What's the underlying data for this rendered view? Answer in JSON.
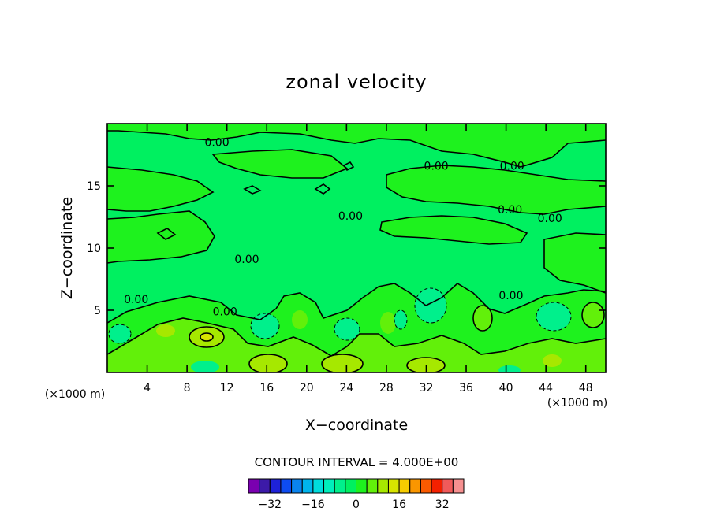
{
  "chart_data": {
    "type": "contour",
    "title": "zonal velocity",
    "xlabel": "X−coordinate",
    "ylabel": "Z−coordinate",
    "x_unit_label": "(×1000 m)",
    "y_unit_label": "(×1000 m)",
    "xlim": [
      0,
      50
    ],
    "ylim": [
      0,
      20
    ],
    "x_ticks": [
      4,
      8,
      12,
      16,
      20,
      24,
      28,
      32,
      36,
      40,
      44,
      48
    ],
    "y_ticks": [
      5,
      10,
      15
    ],
    "contour_interval_text": "CONTOUR INTERVAL = 4.000E+00",
    "contour_interval": 4,
    "contour_labels": [
      {
        "text": "0.00",
        "x": 11,
        "y": 18.5
      },
      {
        "text": "0.00",
        "x": 33,
        "y": 16.6
      },
      {
        "text": "0.00",
        "x": 40.6,
        "y": 16.6
      },
      {
        "text": "0.00",
        "x": 24.4,
        "y": 12.6
      },
      {
        "text": "0.00",
        "x": 40.4,
        "y": 13.1
      },
      {
        "text": "0.00",
        "x": 44.4,
        "y": 12.4
      },
      {
        "text": "0.00",
        "x": 14,
        "y": 9.1
      },
      {
        "text": "0.00",
        "x": 2.9,
        "y": 5.9
      },
      {
        "text": "0.00",
        "x": 11.8,
        "y": 4.9
      },
      {
        "text": "0.00",
        "x": 40.5,
        "y": 6.2
      }
    ],
    "colorbar": {
      "levels": [
        -40,
        -36,
        -32,
        -28,
        -24,
        -20,
        -16,
        -12,
        -8,
        -4,
        0,
        4,
        8,
        12,
        16,
        20,
        24,
        28,
        32,
        36,
        40
      ],
      "colors": [
        "#7a00b0",
        "#3c1aa8",
        "#1e22d8",
        "#0e4cf0",
        "#0a84ee",
        "#00b4ec",
        "#00dcdc",
        "#00eebc",
        "#00f08c",
        "#00f060",
        "#1ef21e",
        "#62f00a",
        "#a6e800",
        "#d8e400",
        "#f6cc00",
        "#fa9600",
        "#fa5a00",
        "#f42000",
        "#f05a5a",
        "#f69090"
      ],
      "tick_labels": [
        "−32",
        "−16",
        "0",
        "16",
        "32"
      ],
      "tick_values": [
        -32,
        -16,
        0,
        16,
        32
      ]
    },
    "field_regions": [
      {
        "level": "-4 to 0",
        "color": "#00f060"
      },
      {
        "level": "0 to 4",
        "color": "#1ef21e"
      },
      {
        "level": "-8 to -4",
        "color": "#00f08c"
      },
      {
        "level": "4 to 8",
        "color": "#62f00a"
      },
      {
        "level": "8 to 12",
        "color": "#a6e800"
      }
    ],
    "grid": false,
    "legend": "bottom-center colorbar"
  }
}
